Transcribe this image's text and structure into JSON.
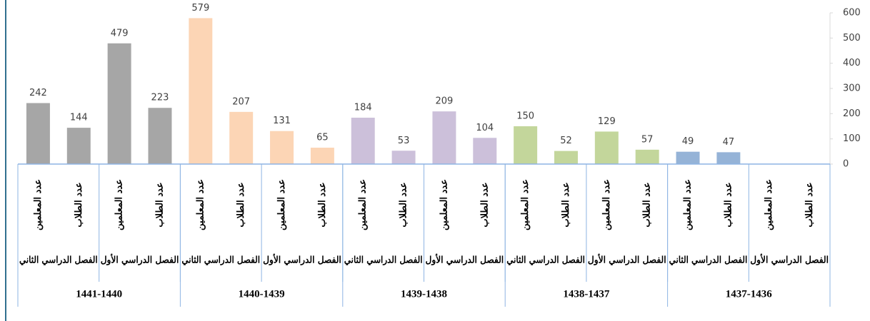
{
  "chart_data": {
    "type": "bar",
    "categories": [
      "عدد المعلمين",
      "عدد الطلاب",
      "عدد المعلمين",
      "عدد الطلاب",
      "عدد المعلمين",
      "عدد الطلاب",
      "عدد المعلمين",
      "عدد الطلاب",
      "عدد المعلمين",
      "عدد الطلاب",
      "عدد المعلمين",
      "عدد الطلاب",
      "عدد المعلمين",
      "عدد الطلاب",
      "عدد المعلمين",
      "عدد الطلاب",
      "عدد المعلمين",
      "عدد الطلاب",
      "عدد المعلمين",
      "عدد الطلاب"
    ],
    "semesters": [
      "الفصل الدراسي الثاني",
      "الفصل الدراسي الأول",
      "الفصل الدراسي الثاني",
      "الفصل الدراسي الأول",
      "الفصل الدراسي الثاني",
      "الفصل الدراسي الأول",
      "الفصل الدراسي الثاني",
      "الفصل الدراسي الأول",
      "الفصل الدراسي الثاني",
      "الفصل الدراسي الأول"
    ],
    "years": [
      "1441-1440",
      "1440-1439",
      "1439-1438",
      "1438-1437",
      "1437-1436"
    ],
    "year_colors": [
      "#a6a6a6",
      "#fcd5b5",
      "#ccc0da",
      "#c3d69b",
      "#95b3d7"
    ],
    "values": [
      242,
      144,
      479,
      223,
      579,
      207,
      131,
      65,
      184,
      53,
      209,
      104,
      150,
      52,
      129,
      57,
      49,
      47,
      null,
      null
    ],
    "ylim": [
      0,
      600
    ],
    "yticks": [
      0,
      100,
      200,
      300,
      400,
      500,
      600
    ],
    "y_axis_side": "right"
  }
}
